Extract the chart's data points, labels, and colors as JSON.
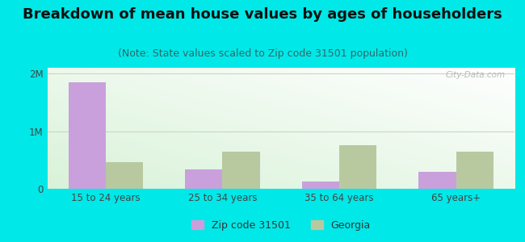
{
  "title": "Breakdown of mean house values by ages of householders",
  "subtitle": "(Note: State values scaled to Zip code 31501 population)",
  "categories": [
    "15 to 24 years",
    "25 to 34 years",
    "35 to 64 years",
    "65 years+"
  ],
  "zip_values": [
    1850000,
    330000,
    120000,
    300000
  ],
  "ga_values": [
    460000,
    650000,
    760000,
    640000
  ],
  "zip_color": "#c9a0dc",
  "ga_color": "#b8c9a0",
  "background_outer": "#00e8e8",
  "bar_width": 0.32,
  "ylim": [
    0,
    2100000
  ],
  "yticks": [
    0,
    1000000,
    2000000
  ],
  "ytick_labels": [
    "0",
    "1M",
    "2M"
  ],
  "grid_color": "#c8d8c0",
  "title_fontsize": 13,
  "subtitle_fontsize": 9,
  "tick_fontsize": 8.5,
  "legend_fontsize": 9,
  "zip_label": "Zip code 31501",
  "ga_label": "Georgia",
  "watermark": "City-Data.com"
}
